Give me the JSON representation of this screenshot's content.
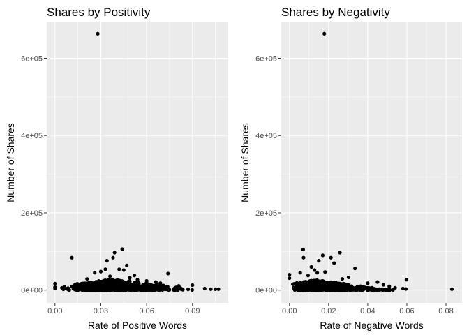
{
  "figure": {
    "background": "#ffffff",
    "panel_background": "#ebebeb",
    "grid_color": "#ffffff",
    "point_color": "#000000"
  },
  "chart_data": [
    {
      "type": "scatter",
      "title": "Shares by Positivity",
      "xlabel": "Rate of Positive Words",
      "ylabel": "Number of Shares",
      "xlim": [
        -0.0054,
        0.1134
      ],
      "ylim": [
        -33000,
        693000
      ],
      "x_ticks": [
        0.0,
        0.03,
        0.06,
        0.09
      ],
      "x_tick_labels": [
        "0.00",
        "0.03",
        "0.06",
        "0.09"
      ],
      "y_ticks": [
        0,
        200000,
        400000,
        600000
      ],
      "y_tick_labels": [
        "0e+00",
        "2e+05",
        "4e+05",
        "6e+05"
      ],
      "grid": true,
      "legend": "none",
      "points": [
        {
          "x": 0.028,
          "y": 663600
        },
        {
          "x": 0.044,
          "y": 106000
        },
        {
          "x": 0.039,
          "y": 97000
        },
        {
          "x": 0.011,
          "y": 84000
        },
        {
          "x": 0.038,
          "y": 84000
        },
        {
          "x": 0.034,
          "y": 76000
        },
        {
          "x": 0.047,
          "y": 64000
        },
        {
          "x": 0.042,
          "y": 54000
        },
        {
          "x": 0.033,
          "y": 54000
        },
        {
          "x": 0.045,
          "y": 52000
        },
        {
          "x": 0.03,
          "y": 48000
        },
        {
          "x": 0.026,
          "y": 45000
        },
        {
          "x": 0.074,
          "y": 43000
        },
        {
          "x": 0.052,
          "y": 38000
        },
        {
          "x": 0.036,
          "y": 36000
        },
        {
          "x": 0.049,
          "y": 32000
        },
        {
          "x": 0.021,
          "y": 29000
        },
        {
          "x": 0.054,
          "y": 27000
        },
        {
          "x": 0.06,
          "y": 24000
        },
        {
          "x": 0.066,
          "y": 21000
        },
        {
          "x": 0.0,
          "y": 17000
        },
        {
          "x": 0.069,
          "y": 18000
        },
        {
          "x": 0.09,
          "y": 13000
        },
        {
          "x": 0.081,
          "y": 11000
        },
        {
          "x": 0.0,
          "y": 8000
        },
        {
          "x": 0.0,
          "y": 4000
        },
        {
          "x": 0.098,
          "y": 4000
        },
        {
          "x": 0.102,
          "y": 2500
        },
        {
          "x": 0.105,
          "y": 2500
        },
        {
          "x": 0.107,
          "y": 2500
        }
      ],
      "dense_cluster": {
        "x_min": 0.002,
        "x_max": 0.095,
        "x_peak": 0.038,
        "y_min": 400,
        "y_max_at_peak": 28000
      }
    },
    {
      "type": "scatter",
      "title": "Shares by Negativity",
      "xlabel": "Rate of Negative Words",
      "ylabel": "Number of Shares",
      "xlim": [
        -0.0042,
        0.0882
      ],
      "ylim": [
        -33000,
        693000
      ],
      "x_ticks": [
        0.0,
        0.02,
        0.04,
        0.06,
        0.08
      ],
      "x_tick_labels": [
        "0.00",
        "0.02",
        "0.04",
        "0.06",
        "0.08"
      ],
      "y_ticks": [
        0,
        200000,
        400000,
        600000
      ],
      "y_tick_labels": [
        "0e+00",
        "2e+05",
        "4e+05",
        "6e+05"
      ],
      "grid": true,
      "legend": "none",
      "points": [
        {
          "x": 0.0178,
          "y": 663600
        },
        {
          "x": 0.007,
          "y": 105000
        },
        {
          "x": 0.0258,
          "y": 97000
        },
        {
          "x": 0.017,
          "y": 90000
        },
        {
          "x": 0.0072,
          "y": 84000
        },
        {
          "x": 0.0212,
          "y": 84000
        },
        {
          "x": 0.015,
          "y": 76000
        },
        {
          "x": 0.0112,
          "y": 60000
        },
        {
          "x": 0.0228,
          "y": 70000
        },
        {
          "x": 0.0128,
          "y": 52000
        },
        {
          "x": 0.0142,
          "y": 45000
        },
        {
          "x": 0.0055,
          "y": 45000
        },
        {
          "x": 0.0335,
          "y": 56000
        },
        {
          "x": 0.0182,
          "y": 47000
        },
        {
          "x": 0.0,
          "y": 40000
        },
        {
          "x": 0.0,
          "y": 31000
        },
        {
          "x": 0.0095,
          "y": 38000
        },
        {
          "x": 0.0302,
          "y": 33000
        },
        {
          "x": 0.027,
          "y": 29000
        },
        {
          "x": 0.0598,
          "y": 27000
        },
        {
          "x": 0.045,
          "y": 21000
        },
        {
          "x": 0.04,
          "y": 18000
        },
        {
          "x": 0.048,
          "y": 14000
        },
        {
          "x": 0.051,
          "y": 10000
        },
        {
          "x": 0.054,
          "y": 6000
        },
        {
          "x": 0.058,
          "y": 4000
        },
        {
          "x": 0.0595,
          "y": 3000
        },
        {
          "x": 0.083,
          "y": 2500
        }
      ],
      "dense_cluster": {
        "x_min": 0.0,
        "x_max": 0.06,
        "x_peak": 0.014,
        "y_min": 400,
        "y_max_at_peak": 26000
      }
    }
  ]
}
